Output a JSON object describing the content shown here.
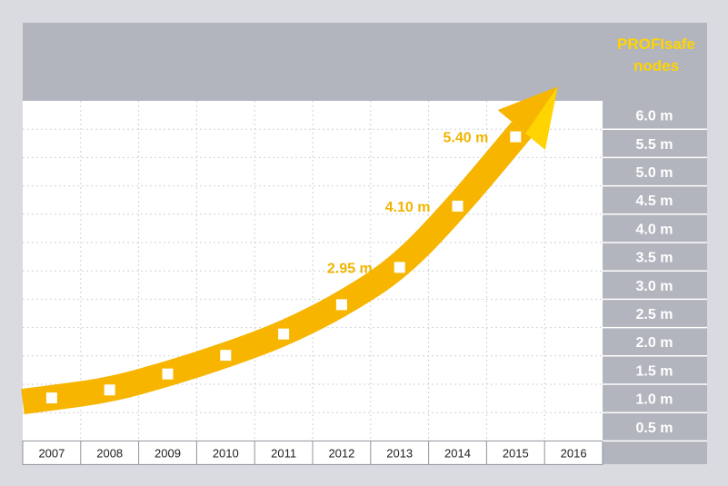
{
  "colors": {
    "background": "#d9dbe0",
    "header": "#b2b5be",
    "plot": "#ffffff",
    "grid": "#cfd2d8",
    "arrow": "#f7b500",
    "arrow_tip": "#ffd400",
    "marker": "#ffffff",
    "scale_panel": "#b2b5be",
    "scale_text": "#ffffff",
    "value_text": "#f0b400",
    "year_text": "#222222"
  },
  "chart_data": {
    "type": "line",
    "title": "PROFIsafe nodes",
    "title_lines": [
      "PROFIsafe",
      "nodes"
    ],
    "xlabel": "",
    "ylabel": "",
    "categories": [
      "2007",
      "2008",
      "2009",
      "2010",
      "2011",
      "2012",
      "2013",
      "2014",
      "2015",
      "2016"
    ],
    "series": [
      {
        "values": [
          0.5,
          0.65,
          0.95,
          1.3,
          1.7,
          2.25,
          2.95,
          4.1,
          5.4,
          null
        ]
      }
    ],
    "value_labels": [
      {
        "category": "2013",
        "text": "2.95 m"
      },
      {
        "category": "2014",
        "text": "4.10 m"
      },
      {
        "category": "2015",
        "text": "5.40 m"
      }
    ],
    "y_ticks": [
      "0.5 m",
      "1.0 m",
      "1.5 m",
      "2.0 m",
      "2.5 m",
      "3.0 m",
      "3.5 m",
      "4.0 m",
      "4.5 m",
      "5.0 m",
      "5.5 m",
      "6.0 m"
    ],
    "ylim": [
      0,
      6.0
    ],
    "y_axis_position": "right",
    "grid": true,
    "legend": "none"
  }
}
